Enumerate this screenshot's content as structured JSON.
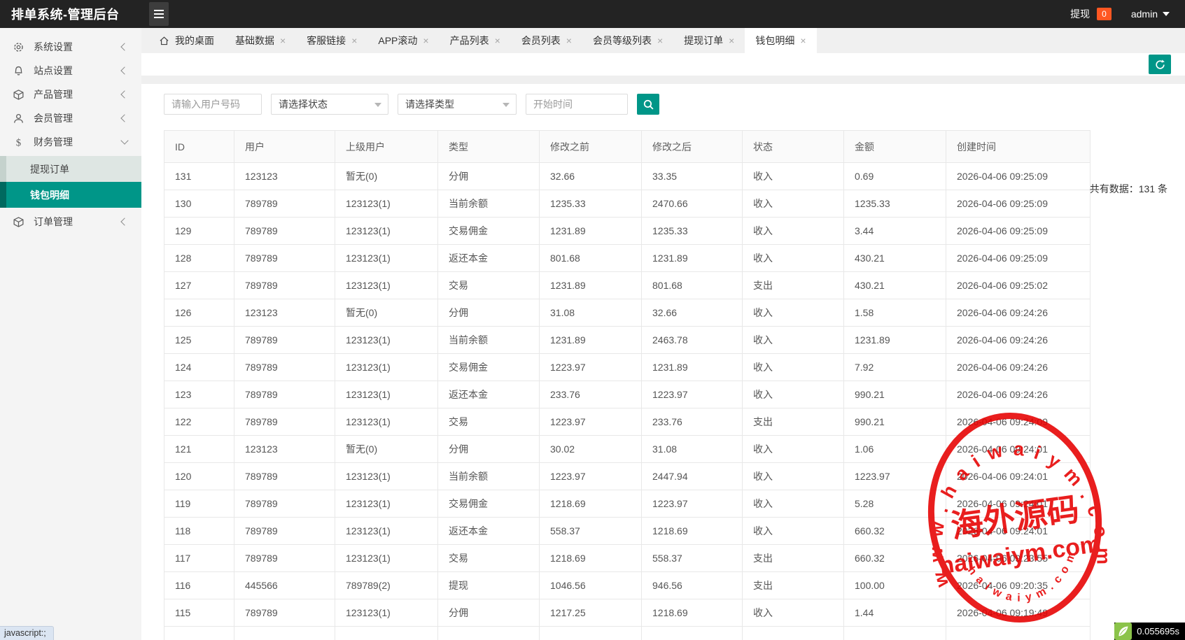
{
  "header": {
    "title": "排单系统-管理后台",
    "withdraw_label": "提现",
    "withdraw_count": "0",
    "username": "admin"
  },
  "sidebar": {
    "items": [
      {
        "key": "system-settings",
        "label": "系统设置",
        "icon": "gear-icon",
        "state": "collapsed"
      },
      {
        "key": "site-settings",
        "label": "站点设置",
        "icon": "bell-icon",
        "state": "collapsed"
      },
      {
        "key": "product-management",
        "label": "产品管理",
        "icon": "cube-icon",
        "state": "collapsed"
      },
      {
        "key": "member-management",
        "label": "会员管理",
        "icon": "user-icon",
        "state": "collapsed"
      },
      {
        "key": "finance-management",
        "label": "财务管理",
        "icon": "dollar-icon",
        "state": "expanded",
        "children": [
          {
            "key": "withdraw-orders",
            "label": "提现订单",
            "active": false
          },
          {
            "key": "wallet-details",
            "label": "钱包明细",
            "active": true
          }
        ]
      },
      {
        "key": "order-management",
        "label": "订单管理",
        "icon": "cube-icon",
        "state": "collapsed"
      }
    ]
  },
  "tabs": [
    {
      "key": "my-desktop",
      "label": "我的桌面",
      "closable": false,
      "active": false,
      "icon": "home-icon"
    },
    {
      "key": "basic-data",
      "label": "基础数据",
      "closable": true,
      "active": false
    },
    {
      "key": "service-links",
      "label": "客服链接",
      "closable": true,
      "active": false
    },
    {
      "key": "app-scroll",
      "label": "APP滚动",
      "closable": true,
      "active": false
    },
    {
      "key": "product-list",
      "label": "产品列表",
      "closable": true,
      "active": false
    },
    {
      "key": "member-list",
      "label": "会员列表",
      "closable": true,
      "active": false
    },
    {
      "key": "member-level-list",
      "label": "会员等级列表",
      "closable": true,
      "active": false
    },
    {
      "key": "withdraw-orders",
      "label": "提现订单",
      "closable": true,
      "active": false
    },
    {
      "key": "wallet-details",
      "label": "钱包明细",
      "closable": true,
      "active": true
    }
  ],
  "filters": {
    "user_placeholder": "请输入用户号码",
    "status_value": "请选择状态",
    "type_value": "请选择类型",
    "start_time_placeholder": "开始时间",
    "total_text": "共有数据：131 条"
  },
  "table": {
    "columns": [
      "ID",
      "用户",
      "上级用户",
      "类型",
      "修改之前",
      "修改之后",
      "状态",
      "金额",
      "创建时间"
    ],
    "rows": [
      [
        "131",
        "123123",
        "暂无(0)",
        "分佣",
        "32.66",
        "33.35",
        "收入",
        "0.69",
        "2026-04-06 09:25:09"
      ],
      [
        "130",
        "789789",
        "123123(1)",
        "当前余额",
        "1235.33",
        "2470.66",
        "收入",
        "1235.33",
        "2026-04-06 09:25:09"
      ],
      [
        "129",
        "789789",
        "123123(1)",
        "交易佣金",
        "1231.89",
        "1235.33",
        "收入",
        "3.44",
        "2026-04-06 09:25:09"
      ],
      [
        "128",
        "789789",
        "123123(1)",
        "返还本金",
        "801.68",
        "1231.89",
        "收入",
        "430.21",
        "2026-04-06 09:25:09"
      ],
      [
        "127",
        "789789",
        "123123(1)",
        "交易",
        "1231.89",
        "801.68",
        "支出",
        "430.21",
        "2026-04-06 09:25:02"
      ],
      [
        "126",
        "123123",
        "暂无(0)",
        "分佣",
        "31.08",
        "32.66",
        "收入",
        "1.58",
        "2026-04-06 09:24:26"
      ],
      [
        "125",
        "789789",
        "123123(1)",
        "当前余额",
        "1231.89",
        "2463.78",
        "收入",
        "1231.89",
        "2026-04-06 09:24:26"
      ],
      [
        "124",
        "789789",
        "123123(1)",
        "交易佣金",
        "1223.97",
        "1231.89",
        "收入",
        "7.92",
        "2026-04-06 09:24:26"
      ],
      [
        "123",
        "789789",
        "123123(1)",
        "返还本金",
        "233.76",
        "1223.97",
        "收入",
        "990.21",
        "2026-04-06 09:24:26"
      ],
      [
        "122",
        "789789",
        "123123(1)",
        "交易",
        "1223.97",
        "233.76",
        "支出",
        "990.21",
        "2026-04-06 09:24:09"
      ],
      [
        "121",
        "123123",
        "暂无(0)",
        "分佣",
        "30.02",
        "31.08",
        "收入",
        "1.06",
        "2026-04-06 09:24:01"
      ],
      [
        "120",
        "789789",
        "123123(1)",
        "当前余额",
        "1223.97",
        "2447.94",
        "收入",
        "1223.97",
        "2026-04-06 09:24:01"
      ],
      [
        "119",
        "789789",
        "123123(1)",
        "交易佣金",
        "1218.69",
        "1223.97",
        "收入",
        "5.28",
        "2026-04-06 09:24:01"
      ],
      [
        "118",
        "789789",
        "123123(1)",
        "返还本金",
        "558.37",
        "1218.69",
        "收入",
        "660.32",
        "2026-04-06 09:24:01"
      ],
      [
        "117",
        "789789",
        "123123(1)",
        "交易",
        "1218.69",
        "558.37",
        "支出",
        "660.32",
        "2026-04-06 09:23:55"
      ],
      [
        "116",
        "445566",
        "789789(2)",
        "提现",
        "1046.56",
        "946.56",
        "支出",
        "100.00",
        "2026-04-06 09:20:35"
      ],
      [
        "115",
        "789789",
        "123123(1)",
        "分佣",
        "1217.25",
        "1218.69",
        "收入",
        "1.44",
        "2026-04-06 09:19:49"
      ]
    ]
  },
  "watermark": {
    "arc_text": "w w w . h a i w a i y m . c o m",
    "center_text": "海外源码",
    "line_text": "haiwaiym.com",
    "bottom_arc_text": "h a i w a i y m . c o m",
    "color": "#e60000"
  },
  "statusbar": {
    "text": "javascript:;"
  },
  "trace": {
    "time": "0.055695s"
  },
  "colors": {
    "accent": "#009688",
    "accent_dark": "#00695f",
    "badge": "#ff5722",
    "header_bg": "#232323",
    "stamp_red": "#e60000",
    "trace_green": "#8bc34a"
  }
}
